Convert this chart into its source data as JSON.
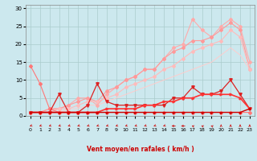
{
  "xlabel": "Vent moyen/en rafales ( km/h )",
  "background_color": "#cce8ee",
  "grid_color": "#aacccc",
  "xlim": [
    -0.5,
    23.5
  ],
  "ylim": [
    0,
    31
  ],
  "yticks": [
    0,
    5,
    10,
    15,
    20,
    25,
    30
  ],
  "xticks": [
    0,
    1,
    2,
    3,
    4,
    5,
    6,
    7,
    8,
    9,
    10,
    11,
    12,
    13,
    14,
    15,
    16,
    17,
    18,
    19,
    20,
    21,
    22,
    23
  ],
  "series": [
    {
      "label": "line_dark_drop",
      "x": [
        0,
        1,
        2,
        3,
        4,
        5,
        6,
        7,
        8,
        9,
        10,
        11,
        12,
        13,
        14,
        15,
        16,
        17,
        18,
        19,
        20,
        21,
        22,
        23
      ],
      "y": [
        14,
        9,
        2,
        1,
        1,
        1,
        1,
        1,
        1,
        1,
        1,
        1,
        1,
        1,
        1,
        1,
        1,
        1,
        1,
        1,
        1,
        1,
        1,
        1
      ],
      "color": "#ff7777",
      "lw": 0.8,
      "marker": "D",
      "ms": 2.0,
      "zorder": 4
    },
    {
      "label": "line_pink_rising_high",
      "x": [
        0,
        1,
        2,
        3,
        4,
        5,
        6,
        7,
        8,
        9,
        10,
        11,
        12,
        13,
        14,
        15,
        16,
        17,
        18,
        19,
        20,
        21,
        22,
        23
      ],
      "y": [
        1,
        1,
        2,
        2,
        3,
        5,
        5,
        3,
        6,
        8,
        10,
        11,
        13,
        13,
        16,
        19,
        20,
        27,
        24,
        22,
        25,
        27,
        25,
        15
      ],
      "color": "#ffaaaa",
      "lw": 0.8,
      "marker": "D",
      "ms": 2.0,
      "zorder": 3
    },
    {
      "label": "line_pink_rising_mid2",
      "x": [
        0,
        1,
        2,
        3,
        4,
        5,
        6,
        7,
        8,
        9,
        10,
        11,
        12,
        13,
        14,
        15,
        16,
        17,
        18,
        19,
        20,
        21,
        22,
        23
      ],
      "y": [
        1,
        1,
        2,
        2,
        3,
        4,
        5,
        4,
        7,
        8,
        10,
        11,
        13,
        13,
        16,
        18,
        19,
        21,
        21,
        22,
        24,
        26,
        24,
        13
      ],
      "color": "#ff9999",
      "lw": 0.8,
      "marker": "D",
      "ms": 2.0,
      "zorder": 3
    },
    {
      "label": "line_pink_rising_mid",
      "x": [
        0,
        1,
        2,
        3,
        4,
        5,
        6,
        7,
        8,
        9,
        10,
        11,
        12,
        13,
        14,
        15,
        16,
        17,
        18,
        19,
        20,
        21,
        22,
        23
      ],
      "y": [
        1,
        1,
        1,
        2,
        2,
        3,
        4,
        4,
        5,
        6,
        8,
        9,
        10,
        11,
        13,
        14,
        16,
        18,
        19,
        20,
        21,
        24,
        22,
        13
      ],
      "color": "#ffbbbb",
      "lw": 0.8,
      "marker": "D",
      "ms": 2.0,
      "zorder": 3
    },
    {
      "label": "line_pale_linear",
      "x": [
        0,
        1,
        2,
        3,
        4,
        5,
        6,
        7,
        8,
        9,
        10,
        11,
        12,
        13,
        14,
        15,
        16,
        17,
        18,
        19,
        20,
        21,
        22,
        23
      ],
      "y": [
        1,
        1,
        1,
        1,
        2,
        2,
        3,
        3,
        4,
        5,
        6,
        7,
        8,
        9,
        10,
        11,
        12,
        13,
        14,
        15,
        17,
        19,
        17,
        13
      ],
      "color": "#ffcccc",
      "lw": 0.7,
      "marker": null,
      "ms": 0,
      "zorder": 2
    },
    {
      "label": "line_red_spiky",
      "x": [
        0,
        1,
        2,
        3,
        4,
        5,
        6,
        7,
        8,
        9,
        10,
        11,
        12,
        13,
        14,
        15,
        16,
        17,
        18,
        19,
        20,
        21,
        22,
        23
      ],
      "y": [
        1,
        1,
        1,
        6,
        1,
        1,
        3,
        9,
        4,
        3,
        3,
        3,
        3,
        3,
        3,
        5,
        5,
        8,
        6,
        6,
        7,
        10,
        6,
        2
      ],
      "color": "#dd2222",
      "lw": 0.9,
      "marker": "v",
      "ms": 2.5,
      "zorder": 5
    },
    {
      "label": "line_red_slow_rise",
      "x": [
        0,
        1,
        2,
        3,
        4,
        5,
        6,
        7,
        8,
        9,
        10,
        11,
        12,
        13,
        14,
        15,
        16,
        17,
        18,
        19,
        20,
        21,
        22,
        23
      ],
      "y": [
        1,
        1,
        1,
        1,
        1,
        1,
        1,
        1,
        2,
        2,
        2,
        2,
        3,
        3,
        4,
        4,
        5,
        5,
        6,
        6,
        6,
        6,
        5,
        2
      ],
      "color": "#ff3333",
      "lw": 1.2,
      "marker": ">",
      "ms": 2.0,
      "zorder": 5
    },
    {
      "label": "line_darkred_flat",
      "x": [
        0,
        1,
        2,
        3,
        4,
        5,
        6,
        7,
        8,
        9,
        10,
        11,
        12,
        13,
        14,
        15,
        16,
        17,
        18,
        19,
        20,
        21,
        22,
        23
      ],
      "y": [
        1,
        1,
        1,
        1,
        1,
        1,
        1,
        1,
        1,
        1,
        1,
        1,
        1,
        1,
        1,
        1,
        1,
        1,
        1,
        1,
        1,
        1,
        1,
        2
      ],
      "color": "#cc0000",
      "lw": 1.0,
      "marker": ">",
      "ms": 1.5,
      "zorder": 5
    }
  ],
  "wind_arrows": {
    "x": [
      0,
      1,
      2,
      3,
      4,
      5,
      6,
      7,
      8,
      9,
      10,
      11,
      12,
      13,
      14,
      15,
      16,
      17,
      18,
      19,
      20,
      21,
      22,
      23
    ],
    "angles_deg": [
      225,
      225,
      225,
      225,
      225,
      225,
      225,
      225,
      225,
      225,
      225,
      225,
      225,
      225,
      225,
      180,
      180,
      135,
      135,
      135,
      90,
      90,
      90,
      90
    ]
  }
}
